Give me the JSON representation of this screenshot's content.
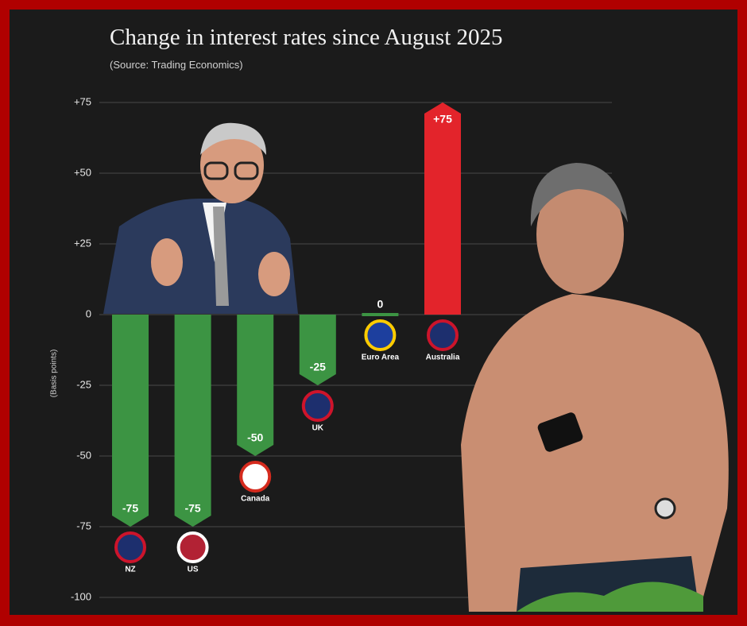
{
  "chart_data": {
    "type": "bar",
    "title": "Change in interest rates since August 2025",
    "subtitle": "(Source: Trading Economics)",
    "y_label": "(Basis points)",
    "categories": [
      "NZ",
      "US",
      "Canada",
      "UK",
      "Euro Area",
      "Australia"
    ],
    "values": [
      -75,
      -75,
      -50,
      -25,
      0,
      75
    ],
    "value_labels": [
      "-75",
      "-75",
      "-50",
      "-25",
      "0",
      "+75"
    ],
    "colors": [
      "#3c9443",
      "#3c9443",
      "#3c9443",
      "#3c9443",
      "#3c9443",
      "#e3242b"
    ],
    "ylim": [
      -100,
      75
    ],
    "yticks": [
      {
        "value": 75,
        "label": "+75"
      },
      {
        "value": 50,
        "label": "+50"
      },
      {
        "value": 25,
        "label": "+25"
      },
      0,
      -25,
      -50,
      -75,
      -100
    ],
    "grid": true
  }
}
